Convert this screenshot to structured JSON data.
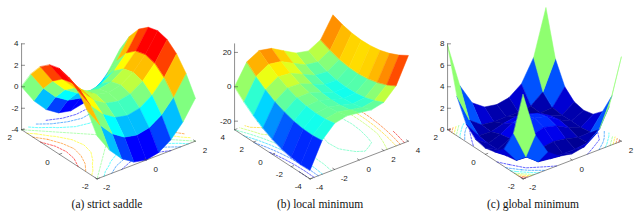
{
  "chart_data": [
    {
      "type": "surface",
      "title": "(a) strict saddle",
      "color": "jet",
      "x": [
        -2,
        -1.5,
        -1,
        -0.5,
        0,
        0.5,
        1,
        1.5,
        2
      ],
      "y": [
        -2,
        -1.5,
        -1,
        -0.5,
        0,
        0.5,
        1,
        1.5,
        2
      ],
      "values": [
        [
          0,
          -1.75,
          -3,
          -3.75,
          -4,
          -3.75,
          -3,
          -1.75,
          0
        ],
        [
          1.75,
          0,
          -1.25,
          -2,
          -2.25,
          -2,
          -1.25,
          0,
          1.75
        ],
        [
          3,
          1.25,
          0,
          -0.75,
          -1,
          -0.75,
          0,
          1.25,
          3
        ],
        [
          3.75,
          2,
          0.75,
          0,
          -0.25,
          0,
          0.75,
          2,
          3.75
        ],
        [
          4,
          2.25,
          1,
          0.25,
          0,
          0.25,
          1,
          2.25,
          4
        ],
        [
          3.75,
          2,
          0.75,
          0,
          -0.25,
          0,
          0.75,
          2,
          3.75
        ],
        [
          3,
          1.25,
          0,
          -0.75,
          -1,
          -0.75,
          0,
          1.25,
          3
        ],
        [
          1.75,
          0,
          -1.25,
          -2,
          -2.25,
          -2,
          -1.25,
          0,
          1.75
        ],
        [
          0,
          -1.75,
          -3,
          -3.75,
          -4,
          -3.75,
          -3,
          -1.75,
          0
        ]
      ],
      "xlim": [
        -2,
        2
      ],
      "ylim": [
        -2,
        2
      ],
      "zlim": [
        -4,
        4
      ],
      "xticks": [
        -2,
        0,
        2
      ],
      "yticks": [
        -2,
        0,
        2
      ],
      "zticks": [
        -4,
        -2,
        0,
        2,
        4
      ]
    },
    {
      "type": "surface",
      "title": "(b) local minimum",
      "color": "jet",
      "x": [
        -4,
        -3,
        -2,
        -1,
        0,
        1,
        2,
        3,
        4
      ],
      "y": [
        -4,
        -3,
        -2,
        -1,
        0,
        1,
        2,
        3,
        4
      ],
      "values": [
        [
          -19.92,
          -5.08,
          1.84,
          3.48,
          2.48,
          1.48,
          3.12,
          10.04,
          24.88
        ],
        [
          -20.15,
          -5.7,
          0.83,
          2.08,
          0.69,
          -0.7,
          0.55,
          7.08,
          21.53
        ],
        [
          -19.6,
          -5.54,
          0.6,
          1.46,
          -0.32,
          -2.1,
          -1.24,
          4.9,
          18.96
        ],
        [
          -18.27,
          -4.6,
          1.15,
          1.62,
          -0.55,
          -2.72,
          -2.25,
          3.5,
          17.17
        ],
        [
          -16.16,
          -2.88,
          2.48,
          2.56,
          0,
          -2.56,
          -2.48,
          2.88,
          16.16
        ],
        [
          -13.27,
          -0.38,
          4.59,
          4.28,
          1.33,
          -1.62,
          -1.93,
          3.04,
          15.93
        ],
        [
          -9.6,
          2.9,
          7.48,
          6.78,
          3.44,
          0.1,
          -0.6,
          3.98,
          16.48
        ],
        [
          -5.15,
          6.96,
          11.15,
          10.06,
          6.33,
          2.6,
          1.51,
          5.7,
          17.81
        ],
        [
          0.08,
          11.8,
          15.6,
          14.12,
          10,
          5.88,
          4.4,
          8.2,
          19.92
        ]
      ],
      "xlim": [
        -4,
        4
      ],
      "ylim": [
        -4,
        4
      ],
      "zlim": [
        -25,
        25
      ],
      "xticks": [
        -4,
        -2,
        0,
        2,
        4
      ],
      "yticks": [
        -4,
        -2,
        0,
        2,
        4
      ],
      "zticks": [
        -20,
        0,
        20
      ]
    },
    {
      "type": "surface",
      "title": "(c) global minimum",
      "color": "jet",
      "x": [
        -2,
        -1.5,
        -1,
        -0.5,
        0,
        0.5,
        1,
        1.5,
        2
      ],
      "y": [
        -2,
        -1.5,
        -1,
        -0.5,
        0,
        0.5,
        1,
        1.5,
        2
      ],
      "values": [
        [
          7.87,
          3.66,
          1.63,
          0.8,
          0.59,
          0.8,
          1.63,
          3.66,
          7.87
        ],
        [
          3.66,
          1.04,
          0.15,
          0,
          0.02,
          0,
          0.15,
          1.04,
          3.66
        ],
        [
          1.63,
          0.15,
          0.07,
          0.41,
          0.59,
          0.41,
          0.07,
          0.15,
          1.63
        ],
        [
          0.8,
          0,
          0.41,
          1.04,
          1.32,
          1.04,
          0.41,
          0,
          0.8
        ],
        [
          0.59,
          0.02,
          0.59,
          1.32,
          1.63,
          1.32,
          0.59,
          0.02,
          0.59
        ],
        [
          0.8,
          0,
          0.41,
          1.04,
          1.32,
          1.04,
          0.41,
          0,
          0.8
        ],
        [
          1.63,
          0.15,
          0.07,
          0.41,
          0.59,
          0.41,
          0.07,
          0.15,
          1.63
        ],
        [
          3.66,
          1.04,
          0.15,
          0,
          0.02,
          0,
          0.15,
          1.04,
          3.66
        ],
        [
          7.87,
          3.66,
          1.63,
          0.8,
          0.59,
          0.8,
          1.63,
          3.66,
          7.87
        ]
      ],
      "xlim": [
        -2,
        2
      ],
      "ylim": [
        -2,
        2
      ],
      "zlim": [
        0,
        8
      ],
      "xticks": [
        -2,
        0,
        2
      ],
      "yticks": [
        -2,
        0,
        2
      ],
      "zticks": [
        0,
        2,
        4,
        6,
        8
      ]
    }
  ]
}
